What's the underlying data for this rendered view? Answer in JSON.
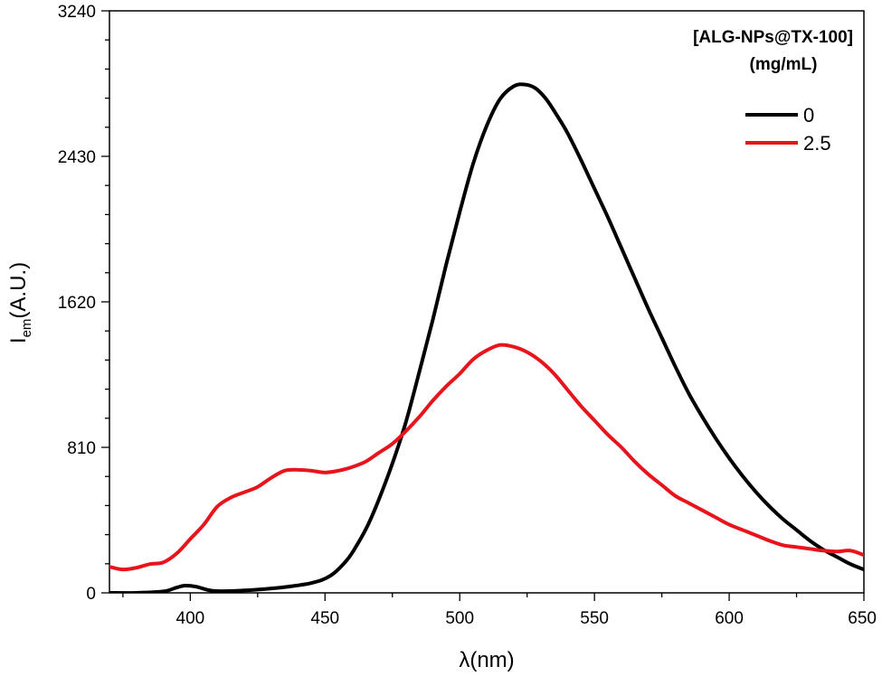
{
  "chart_data": {
    "type": "line",
    "xlabel": "λ(nm)",
    "ylabel_main": "I",
    "ylabel_sub": "em",
    "ylabel_rest": "(A.U.)",
    "xlim": [
      370,
      650
    ],
    "ylim": [
      0,
      3240
    ],
    "x_ticks": [
      400,
      450,
      500,
      550,
      600,
      650
    ],
    "x_minor_step": 25,
    "y_ticks": [
      0,
      810,
      1620,
      2430,
      3240
    ],
    "y_minor_step": 162,
    "legend": {
      "position": "top-right",
      "title_line1": "[ALG-NPs@TX-100]",
      "title_line2": "(mg/mL)"
    },
    "series": [
      {
        "name": "0",
        "color": "#000000",
        "x": [
          370,
          380,
          390,
          395,
          398,
          402,
          408,
          415,
          425,
          435,
          445,
          452,
          458,
          462,
          466,
          470,
          475,
          480,
          485,
          490,
          495,
          500,
          505,
          510,
          515,
          520,
          524,
          528,
          532,
          536,
          540,
          545,
          550,
          555,
          560,
          565,
          570,
          575,
          580,
          585,
          590,
          595,
          600,
          605,
          610,
          615,
          620,
          625,
          630,
          635,
          640,
          645,
          650
        ],
        "y": [
          0,
          0,
          8,
          30,
          40,
          35,
          12,
          10,
          18,
          32,
          55,
          95,
          180,
          270,
          380,
          520,
          720,
          950,
          1230,
          1520,
          1830,
          2120,
          2390,
          2600,
          2750,
          2820,
          2830,
          2810,
          2750,
          2660,
          2560,
          2410,
          2250,
          2090,
          1920,
          1750,
          1580,
          1420,
          1260,
          1110,
          980,
          860,
          750,
          650,
          560,
          480,
          410,
          350,
          290,
          240,
          200,
          160,
          130
        ]
      },
      {
        "name": "2.5",
        "color": "#e8141c",
        "x": [
          370,
          375,
          380,
          385,
          390,
          395,
          400,
          405,
          410,
          415,
          420,
          425,
          430,
          435,
          440,
          445,
          450,
          455,
          460,
          465,
          470,
          475,
          480,
          485,
          490,
          495,
          500,
          505,
          510,
          515,
          520,
          525,
          530,
          535,
          540,
          545,
          550,
          555,
          560,
          565,
          570,
          575,
          580,
          585,
          590,
          595,
          600,
          605,
          610,
          615,
          620,
          625,
          630,
          635,
          640,
          645,
          650
        ],
        "y": [
          145,
          130,
          140,
          160,
          170,
          220,
          300,
          380,
          480,
          530,
          560,
          590,
          640,
          680,
          685,
          680,
          670,
          680,
          700,
          730,
          780,
          830,
          900,
          980,
          1070,
          1150,
          1220,
          1300,
          1350,
          1380,
          1370,
          1340,
          1290,
          1220,
          1130,
          1040,
          960,
          880,
          810,
          730,
          660,
          600,
          540,
          500,
          460,
          420,
          380,
          350,
          320,
          290,
          265,
          255,
          245,
          235,
          230,
          235,
          210
        ]
      }
    ]
  }
}
